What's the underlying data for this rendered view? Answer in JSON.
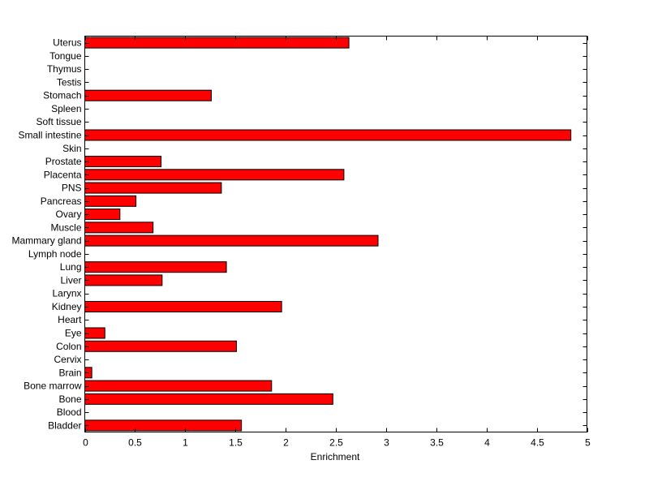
{
  "chart_data": {
    "type": "bar",
    "orientation": "horizontal",
    "title": "",
    "xlabel": "Enrichment",
    "ylabel": "",
    "xlim": [
      0,
      5
    ],
    "xticks": [
      "0",
      "0.5",
      "1",
      "1.5",
      "2",
      "2.5",
      "3",
      "3.5",
      "4",
      "4.5",
      "5"
    ],
    "grid": false,
    "bar_color": "#ff0000",
    "categories": [
      "Bladder",
      "Blood",
      "Bone",
      "Bone marrow",
      "Brain",
      "Cervix",
      "Colon",
      "Eye",
      "Heart",
      "Kidney",
      "Larynx",
      "Liver",
      "Lung",
      "Lymph node",
      "Mammary gland",
      "Muscle",
      "Ovary",
      "Pancreas",
      "PNS",
      "Placenta",
      "Prostate",
      "Skin",
      "Small intestine",
      "Soft tissue",
      "Spleen",
      "Stomach",
      "Testis",
      "Thymus",
      "Tongue",
      "Uterus"
    ],
    "values": [
      1.56,
      0,
      2.47,
      1.86,
      0.07,
      0,
      1.51,
      0.2,
      0,
      1.96,
      0,
      0.77,
      1.41,
      0,
      2.92,
      0.68,
      0.35,
      0.51,
      1.36,
      2.58,
      0.76,
      0,
      4.84,
      0,
      0,
      1.26,
      0,
      0,
      0,
      2.63
    ]
  }
}
